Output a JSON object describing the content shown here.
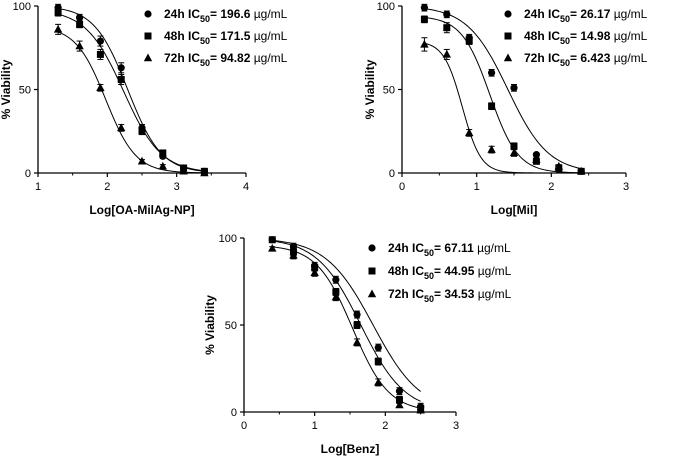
{
  "chart_data": [
    {
      "id": "p1",
      "type": "scatter",
      "xlabel": "Log[OA-MilAg-NP]",
      "ylabel": "% Viability",
      "xlim": [
        1,
        4
      ],
      "ylim": [
        0,
        100
      ],
      "xticks": [
        "1",
        "2",
        "3",
        "4"
      ],
      "yticks": [
        "0",
        "50",
        "100"
      ],
      "legend_placement": "top-right",
      "series": [
        {
          "name_prefix": "24h IC",
          "name_sub": "50",
          "name_value": "= 196.6",
          "name_unit": "µg/mL",
          "marker": "circle",
          "ic50log": 2.294,
          "x": [
            1.29,
            1.6,
            1.9,
            2.2,
            2.5,
            2.8,
            3.1,
            3.4
          ],
          "y": [
            99,
            93,
            79,
            63,
            27,
            10,
            3,
            1
          ],
          "err": [
            2,
            2,
            3,
            3,
            2,
            1,
            1,
            1
          ]
        },
        {
          "name_prefix": "48h IC",
          "name_sub": "50",
          "name_value": "= 171.5",
          "name_unit": "µg/mL",
          "marker": "square",
          "ic50log": 2.234,
          "x": [
            1.29,
            1.6,
            1.9,
            2.2,
            2.5,
            2.8,
            3.1,
            3.4
          ],
          "y": [
            96,
            89,
            71,
            56,
            25,
            12,
            3,
            1
          ],
          "err": [
            2,
            2,
            3,
            3,
            2,
            1,
            1,
            1
          ]
        },
        {
          "name_prefix": "72h IC",
          "name_sub": "50",
          "name_value": "= 94.82",
          "name_unit": "µg/mL",
          "marker": "triangle",
          "ic50log": 1.977,
          "x": [
            1.29,
            1.6,
            1.9,
            2.2,
            2.5,
            2.8,
            3.1,
            3.4
          ],
          "y": [
            86,
            76,
            51,
            27,
            7,
            4,
            1,
            0
          ],
          "err": [
            3,
            3,
            2,
            2,
            1,
            1,
            1,
            1
          ]
        }
      ]
    },
    {
      "id": "p2",
      "type": "scatter",
      "xlabel": "Log[Mil]",
      "ylabel": "% Viability",
      "xlim": [
        0,
        3
      ],
      "ylim": [
        0,
        100
      ],
      "xticks": [
        "0",
        "1",
        "2",
        "3"
      ],
      "yticks": [
        "0",
        "50",
        "100"
      ],
      "legend_placement": "top-right",
      "series": [
        {
          "name_prefix": "24h IC",
          "name_sub": "50",
          "name_value": "= 26.17",
          "name_unit": "µg/mL",
          "marker": "circle",
          "ic50log": 1.418,
          "x": [
            0.3,
            0.6,
            0.9,
            1.2,
            1.5,
            1.8,
            2.1,
            2.4
          ],
          "y": [
            99,
            95,
            81,
            60,
            51,
            11,
            2,
            1
          ],
          "err": [
            2,
            2,
            2,
            2,
            2,
            1,
            1,
            1
          ]
        },
        {
          "name_prefix": "48h IC",
          "name_sub": "50",
          "name_value": "= 14.98",
          "name_unit": "µg/mL",
          "marker": "square",
          "ic50log": 1.176,
          "x": [
            0.3,
            0.6,
            0.9,
            1.2,
            1.5,
            1.8,
            2.1,
            2.4
          ],
          "y": [
            92,
            87,
            79,
            40,
            16,
            7,
            3,
            1
          ],
          "err": [
            2,
            3,
            2,
            2,
            2,
            1,
            1,
            1
          ]
        },
        {
          "name_prefix": "72h IC",
          "name_sub": "50",
          "name_value": "= 6.423",
          "name_unit": "µg/mL",
          "marker": "triangle",
          "ic50log": 0.808,
          "x": [
            0.3,
            0.6,
            0.9,
            1.2,
            1.5,
            1.8,
            2.1,
            2.4
          ],
          "y": [
            77,
            71,
            24,
            14,
            12,
            8,
            4,
            1
          ],
          "err": [
            4,
            3,
            2,
            2,
            2,
            1,
            1,
            1
          ]
        }
      ]
    },
    {
      "id": "p3",
      "type": "scatter",
      "xlabel": "Log[Benz]",
      "ylabel": "% Viability",
      "xlim": [
        0,
        3
      ],
      "ylim": [
        0,
        100
      ],
      "xticks": [
        "0",
        "1",
        "2",
        "3"
      ],
      "yticks": [
        "0",
        "50",
        "100"
      ],
      "legend_placement": "top-right",
      "series": [
        {
          "name_prefix": "24h IC",
          "name_sub": "50",
          "name_value": "= 67.11",
          "name_unit": "µg/mL",
          "marker": "circle",
          "ic50log": 1.827,
          "x": [
            0.4,
            0.7,
            1.0,
            1.3,
            1.6,
            1.9,
            2.2,
            2.5
          ],
          "y": [
            99,
            95,
            84,
            76,
            56,
            37,
            12,
            3
          ],
          "err": [
            1,
            2,
            2,
            2,
            2,
            2,
            2,
            2
          ]
        },
        {
          "name_prefix": "48h IC",
          "name_sub": "50",
          "name_value": "= 44.95",
          "name_unit": "µg/mL",
          "marker": "square",
          "ic50log": 1.653,
          "x": [
            0.4,
            0.7,
            1.0,
            1.3,
            1.6,
            1.9,
            2.2,
            2.5
          ],
          "y": [
            99,
            92,
            83,
            69,
            50,
            29,
            7,
            2
          ],
          "err": [
            1,
            2,
            2,
            2,
            2,
            2,
            2,
            2
          ]
        },
        {
          "name_prefix": "72h IC",
          "name_sub": "50",
          "name_value": "= 34.53",
          "name_unit": "µg/mL",
          "marker": "triangle",
          "ic50log": 1.538,
          "x": [
            0.4,
            0.7,
            1.0,
            1.3,
            1.6,
            1.9,
            2.2,
            2.5
          ],
          "y": [
            94,
            90,
            80,
            66,
            40,
            17,
            4,
            1
          ],
          "err": [
            1,
            2,
            2,
            2,
            2,
            2,
            1,
            1
          ]
        }
      ]
    }
  ]
}
